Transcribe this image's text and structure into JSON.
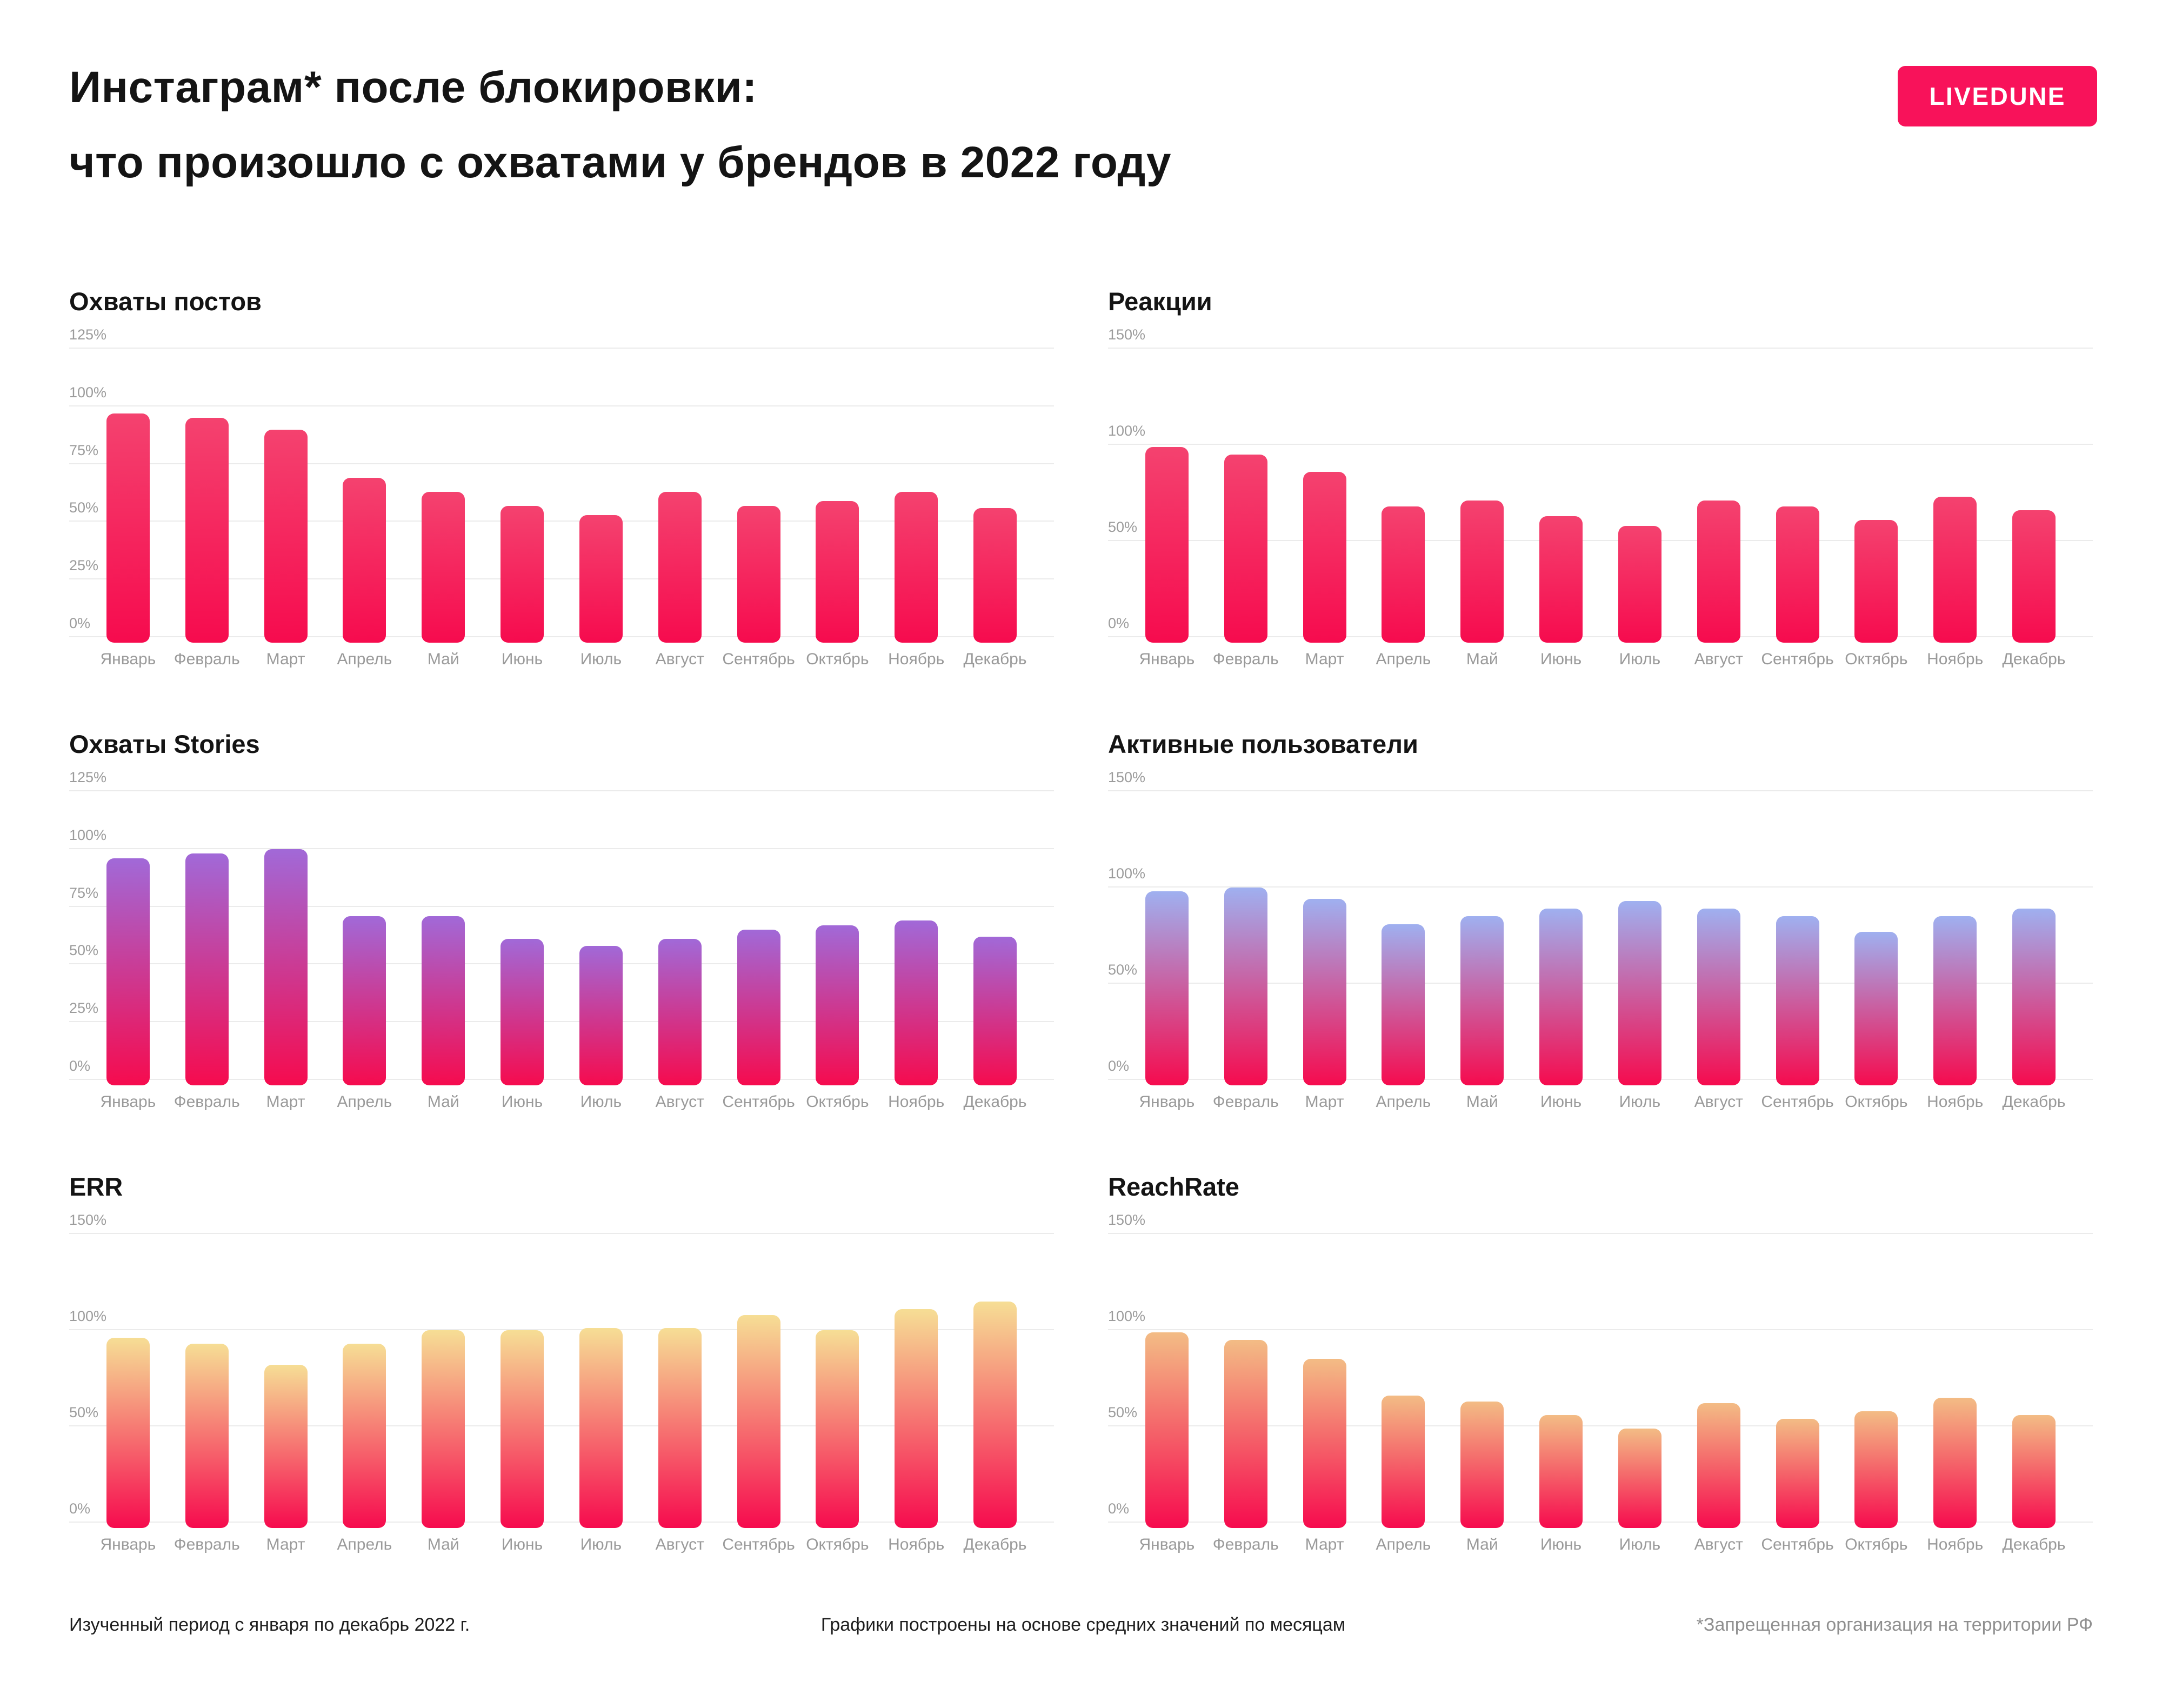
{
  "page": {
    "background": "#FFFFFF",
    "accent_color": "#F8125A"
  },
  "badge": {
    "label": "LIVEDUNE",
    "bg": "#F8125A",
    "text_color": "#FFFFFF"
  },
  "title": {
    "line1": "Инстаграм* после блокировки:",
    "line2": "что произошло с охватами у брендов в 2022 году"
  },
  "footer": {
    "left": "Изученный период с января по декабрь 2022 г.",
    "center": "Графики построены на основе средних значений по месяцам",
    "right": "*Запрещенная организация на территории РФ"
  },
  "chart_data": [
    {
      "type": "bar",
      "title": "Охваты постов",
      "unit": "%",
      "ylim": [
        0,
        125
      ],
      "yticks": [
        0,
        25,
        50,
        75,
        100,
        125
      ],
      "grid": true,
      "bar_color_top": "#F4426F",
      "bar_color_bottom": "#F60B4E",
      "categories": [
        "Январь",
        "Февраль",
        "Март",
        "Апрель",
        "Май",
        "Июнь",
        "Июль",
        "Август",
        "Сентябрь",
        "Октябрь",
        "Ноябрь",
        "Декабрь"
      ],
      "values": [
        97,
        95,
        90,
        69,
        63,
        57,
        53,
        63,
        57,
        59,
        63,
        56
      ]
    },
    {
      "type": "bar",
      "title": "Реакции",
      "unit": "%",
      "ylim": [
        0,
        150
      ],
      "yticks": [
        0,
        50,
        100,
        150
      ],
      "grid": true,
      "bar_color_top": "#F4426F",
      "bar_color_bottom": "#F60B4E",
      "categories": [
        "Январь",
        "Февраль",
        "Март",
        "Апрель",
        "Май",
        "Июнь",
        "Июль",
        "Август",
        "Сентябрь",
        "Октябрь",
        "Ноябрь",
        "Декабрь"
      ],
      "values": [
        99,
        95,
        86,
        68,
        71,
        63,
        58,
        71,
        68,
        61,
        73,
        66
      ]
    },
    {
      "type": "bar",
      "title": "Охваты Stories",
      "unit": "%",
      "ylim": [
        0,
        125
      ],
      "yticks": [
        0,
        25,
        50,
        75,
        100,
        125
      ],
      "grid": true,
      "bar_color_top": "#A169D8",
      "bar_color_bottom": "#F60B4E",
      "categories": [
        "Январь",
        "Февраль",
        "Март",
        "Апрель",
        "Май",
        "Июнь",
        "Июль",
        "Август",
        "Сентябрь",
        "Октябрь",
        "Ноябрь",
        "Декабрь"
      ],
      "values": [
        96,
        98,
        100,
        71,
        71,
        61,
        58,
        61,
        65,
        67,
        69,
        62
      ]
    },
    {
      "type": "bar",
      "title": "Активные пользователи",
      "unit": "%",
      "ylim": [
        0,
        150
      ],
      "yticks": [
        0,
        50,
        100,
        150
      ],
      "grid": true,
      "bar_color_top": "#9FB0F0",
      "bar_color_bottom": "#F60B4E",
      "categories": [
        "Январь",
        "Февраль",
        "Март",
        "Апрель",
        "Май",
        "Июнь",
        "Июль",
        "Август",
        "Сентябрь",
        "Октябрь",
        "Ноябрь",
        "Декабрь"
      ],
      "values": [
        98,
        100,
        94,
        81,
        85,
        89,
        93,
        89,
        85,
        77,
        85,
        89
      ]
    },
    {
      "type": "bar",
      "title": "ERR",
      "unit": "%",
      "ylim": [
        0,
        150
      ],
      "yticks": [
        0,
        50,
        100,
        150
      ],
      "grid": true,
      "bar_color_top": "#F6DE95",
      "bar_color_bottom": "#F60B4E",
      "categories": [
        "Январь",
        "Февраль",
        "Март",
        "Апрель",
        "Май",
        "Июнь",
        "Июль",
        "Август",
        "Сентябрь",
        "Октябрь",
        "Ноябрь",
        "Декабрь"
      ],
      "values": [
        96,
        93,
        82,
        93,
        100,
        100,
        101,
        101,
        108,
        100,
        111,
        115
      ]
    },
    {
      "type": "bar",
      "title": "ReachRate",
      "unit": "%",
      "ylim": [
        0,
        150
      ],
      "yticks": [
        0,
        50,
        100,
        150
      ],
      "grid": true,
      "bar_color_top": "#F3BC85",
      "bar_color_bottom": "#F60B4E",
      "categories": [
        "Январь",
        "Февраль",
        "Март",
        "Апрель",
        "Май",
        "Июнь",
        "Июль",
        "Август",
        "Сентябрь",
        "Октябрь",
        "Ноябрь",
        "Декабрь"
      ],
      "values": [
        99,
        95,
        85,
        66,
        63,
        56,
        49,
        62,
        54,
        58,
        65,
        56
      ]
    }
  ]
}
